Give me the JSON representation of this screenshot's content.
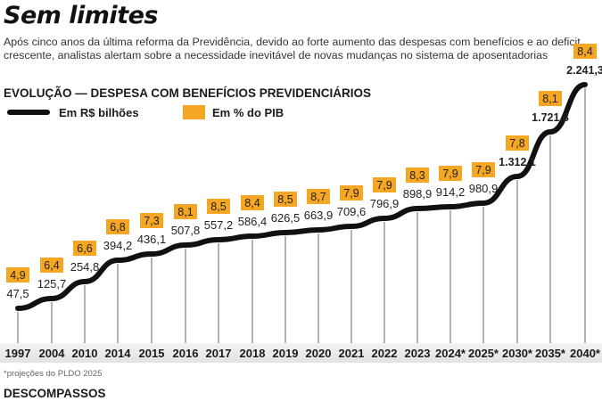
{
  "header": {
    "title": "Sem limites",
    "subtitle": "Após cinco anos da última reforma da Previdência, devido ao forte aumento das despesas com benefícios e ao deficit crescente, analistas alertam sobre a necessidade inevitável de novas mudanças no sistema de aposentadorias"
  },
  "section_title": "EVOLUÇÃO — DESPESA COM BENEFÍCIOS PREVIDENCIÁRIOS",
  "legend": {
    "line_label": "Em R$ bilhões",
    "box_label": "Em % do PIB"
  },
  "footnote": "*projeções do PLDO 2025",
  "next_section_title": "DESCOMPASSOS",
  "colors": {
    "line": "#111111",
    "pib_box": "#f5a623",
    "gridline": "#8a8a8a",
    "axis_band": "#e6e6e6"
  },
  "chart_data": {
    "type": "line",
    "title": "EVOLUÇÃO — DESPESA COM BENEFÍCIOS PREVIDENCIÁRIOS",
    "xlabel": "",
    "ylabel": "",
    "categories": [
      "1997",
      "2004",
      "2010",
      "2014",
      "2015",
      "2016",
      "2017",
      "2018",
      "2019",
      "2020",
      "2021",
      "2022",
      "2023",
      "2024*",
      "2025*",
      "2030*",
      "2035*",
      "2040*"
    ],
    "series": [
      {
        "name": "Em R$ bilhões",
        "values": [
          47.5,
          125.7,
          254.8,
          394.2,
          436.1,
          507.8,
          557.2,
          586.4,
          626.5,
          663.9,
          709.6,
          796.9,
          898.9,
          914.2,
          980.9,
          1312.1,
          1721.8,
          2241.3
        ],
        "labels": [
          "47,5",
          "125,7",
          "254,8",
          "394,2",
          "436,1",
          "507,8",
          "557,2",
          "586,4",
          "626,5",
          "663,9",
          "709,6",
          "796,9",
          "898,9",
          "914,2",
          "980,9",
          "1.312,1",
          "1.721,8",
          "2.241,3"
        ]
      },
      {
        "name": "Em % do PIB",
        "values": [
          4.9,
          6.4,
          6.6,
          6.8,
          7.3,
          8.1,
          8.5,
          8.4,
          8.5,
          8.7,
          7.9,
          7.9,
          8.3,
          7.9,
          7.9,
          7.8,
          8.1,
          8.4
        ],
        "labels": [
          "4,9",
          "6,4",
          "6,6",
          "6,8",
          "7,3",
          "8,1",
          "8,5",
          "8,4",
          "8,5",
          "8,7",
          "7,9",
          "7,9",
          "8,3",
          "7,9",
          "7,9",
          "7,8",
          "8,1",
          "8,4"
        ]
      }
    ],
    "ylim": [
      0,
      2300
    ],
    "grid": false,
    "legend_position": "top-left",
    "annotations": [
      "*projeções do PLDO 2025"
    ]
  }
}
